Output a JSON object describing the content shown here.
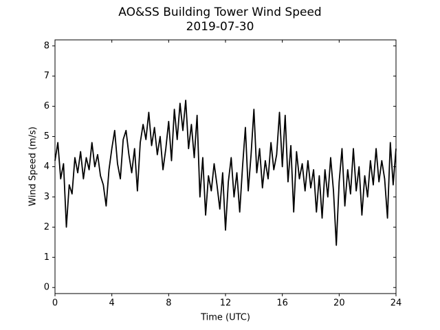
{
  "chart_data": {
    "type": "line",
    "title": "AO&SS Building Tower Wind Speed",
    "subtitle": "2019-07-30",
    "x_label": "Time (UTC)",
    "y_label": "Wind Speed (m/s)",
    "color": "#000000",
    "xlim": [
      0,
      24
    ],
    "xticks": [
      0,
      4,
      8,
      12,
      16,
      20,
      24
    ],
    "ylim": [
      -0.2,
      8.2
    ],
    "yticks": [
      0,
      1,
      2,
      3,
      4,
      5,
      6,
      7,
      8
    ],
    "x": [
      0,
      0.2,
      0.4,
      0.6,
      0.8,
      1,
      1.2,
      1.4,
      1.6,
      1.8,
      2,
      2.2,
      2.4,
      2.6,
      2.8,
      3,
      3.2,
      3.4,
      3.6,
      3.8,
      4,
      4.2,
      4.4,
      4.6,
      4.8,
      5,
      5.2,
      5.4,
      5.6,
      5.8,
      6,
      6.2,
      6.4,
      6.6,
      6.8,
      7,
      7.2,
      7.4,
      7.6,
      7.8,
      8,
      8.2,
      8.4,
      8.6,
      8.8,
      9,
      9.2,
      9.4,
      9.6,
      9.8,
      10,
      10.2,
      10.4,
      10.6,
      10.8,
      11,
      11.2,
      11.4,
      11.6,
      11.8,
      12,
      12.2,
      12.4,
      12.6,
      12.8,
      13,
      13.2,
      13.4,
      13.6,
      13.8,
      14,
      14.2,
      14.4,
      14.6,
      14.8,
      15,
      15.2,
      15.4,
      15.6,
      15.8,
      16,
      16.2,
      16.4,
      16.6,
      16.8,
      17,
      17.2,
      17.4,
      17.6,
      17.8,
      18,
      18.2,
      18.4,
      18.6,
      18.8,
      19,
      19.2,
      19.4,
      19.6,
      19.8,
      20,
      20.2,
      20.4,
      20.6,
      20.8,
      21,
      21.2,
      21.4,
      21.6,
      21.8,
      22,
      22.2,
      22.4,
      22.6,
      22.8,
      23,
      23.2,
      23.4,
      23.6,
      23.8,
      24
    ],
    "values": [
      4.2,
      4.8,
      3.6,
      4.1,
      2.0,
      3.4,
      3.1,
      4.3,
      3.8,
      4.5,
      3.6,
      4.3,
      3.9,
      4.8,
      4.0,
      4.4,
      3.7,
      3.4,
      2.7,
      3.9,
      4.6,
      5.2,
      4.1,
      3.6,
      4.9,
      5.2,
      4.4,
      3.8,
      4.6,
      3.2,
      4.8,
      5.4,
      4.9,
      5.8,
      4.7,
      5.3,
      4.4,
      5.0,
      3.9,
      4.6,
      5.5,
      4.2,
      5.9,
      4.9,
      6.1,
      5.2,
      6.2,
      4.6,
      5.4,
      4.3,
      5.7,
      3.0,
      4.3,
      2.4,
      3.7,
      3.2,
      4.1,
      3.4,
      2.6,
      3.8,
      1.9,
      3.5,
      4.3,
      3.0,
      3.8,
      2.5,
      4.0,
      5.3,
      3.2,
      4.4,
      5.9,
      3.8,
      4.6,
      3.3,
      4.2,
      3.6,
      4.8,
      3.9,
      4.4,
      5.8,
      4.0,
      5.7,
      3.5,
      4.7,
      2.5,
      4.5,
      3.6,
      4.1,
      3.2,
      4.2,
      3.3,
      3.9,
      2.5,
      3.7,
      2.3,
      3.9,
      3.0,
      4.3,
      3.2,
      1.4,
      3.5,
      4.6,
      2.7,
      3.9,
      3.1,
      4.6,
      3.2,
      4.0,
      2.4,
      3.7,
      3.0,
      4.2,
      3.4,
      4.6,
      3.5,
      4.2,
      3.6,
      2.3,
      4.8,
      3.4,
      4.6
    ]
  }
}
